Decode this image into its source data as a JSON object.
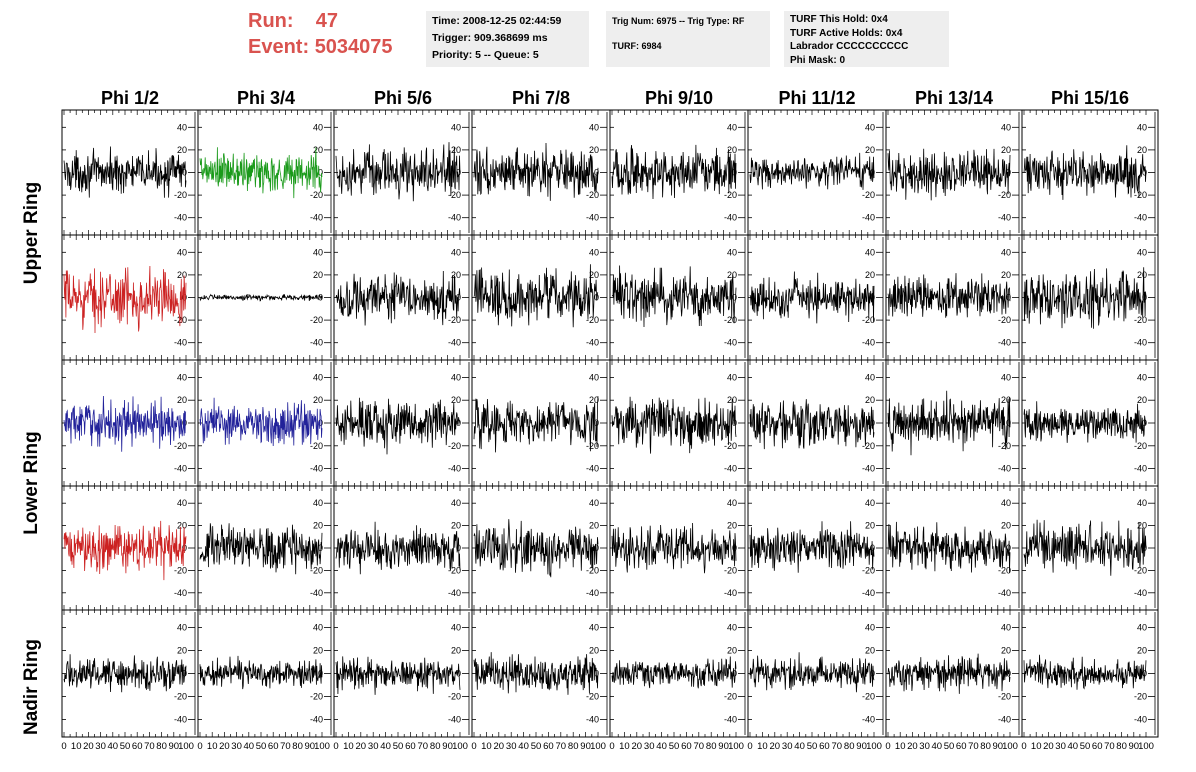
{
  "header": {
    "run_label": "Run:",
    "run_value": "47",
    "event_label": "Event:",
    "event_value": "5034075",
    "time": "Time: 2008-12-25 02:44:59",
    "trigger": "Trigger: 909.368699 ms",
    "priority": "Priority: 5 -- Queue: 5",
    "trig_num": "Trig Num: 6975 -- Trig Type: RF",
    "turf": "TURF: 6984",
    "turf_this_hold": "TURF This Hold: 0x4",
    "turf_active_holds": "TURF Active Holds: 0x4",
    "labrador": "Labrador CCCCCCCCCC",
    "phi_mask": "Phi Mask: 0"
  },
  "columns": [
    "Phi 1/2",
    "Phi 3/4",
    "Phi 5/6",
    "Phi 7/8",
    "Phi 9/10",
    "Phi 11/12",
    "Phi 13/14",
    "Phi 15/16"
  ],
  "rings": [
    "Upper Ring",
    "Lower Ring",
    "Nadir Ring"
  ],
  "colors": {
    "black": "#000000",
    "green": "#1a9a1a",
    "red": "#cc2222",
    "blue": "#22229a"
  },
  "chart_data": {
    "type": "line",
    "ylim": [
      -50,
      50
    ],
    "xlim": [
      0,
      100
    ],
    "yticks": [
      "40",
      "20",
      "0",
      "-20",
      "-40"
    ],
    "xticks": [
      "0",
      "10",
      "20",
      "30",
      "40",
      "50",
      "60",
      "70",
      "80",
      "90",
      "100"
    ],
    "grid": false,
    "rows": [
      {
        "ring": "Upper Ring",
        "panels": [
          {
            "color": "black",
            "amplitude": 20
          },
          {
            "color": "green",
            "amplitude": 22
          },
          {
            "color": "black",
            "amplitude": 24
          },
          {
            "color": "black",
            "amplitude": 24
          },
          {
            "color": "black",
            "amplitude": 24
          },
          {
            "color": "black",
            "amplitude": 16
          },
          {
            "color": "black",
            "amplitude": 22
          },
          {
            "color": "black",
            "amplitude": 24
          }
        ]
      },
      {
        "ring": "Upper Ring",
        "panels": [
          {
            "color": "red",
            "amplitude": 28
          },
          {
            "color": "black",
            "amplitude": 3
          },
          {
            "color": "black",
            "amplitude": 24
          },
          {
            "color": "black",
            "amplitude": 28
          },
          {
            "color": "black",
            "amplitude": 26
          },
          {
            "color": "black",
            "amplitude": 20
          },
          {
            "color": "black",
            "amplitude": 22
          },
          {
            "color": "black",
            "amplitude": 26
          }
        ]
      },
      {
        "ring": "Lower Ring",
        "panels": [
          {
            "color": "blue",
            "amplitude": 22
          },
          {
            "color": "blue",
            "amplitude": 22
          },
          {
            "color": "black",
            "amplitude": 24
          },
          {
            "color": "black",
            "amplitude": 24
          },
          {
            "color": "black",
            "amplitude": 24
          },
          {
            "color": "black",
            "amplitude": 24
          },
          {
            "color": "black",
            "amplitude": 24
          },
          {
            "color": "black",
            "amplitude": 18
          }
        ]
      },
      {
        "ring": "Lower Ring",
        "panels": [
          {
            "color": "red",
            "amplitude": 24
          },
          {
            "color": "black",
            "amplitude": 22
          },
          {
            "color": "black",
            "amplitude": 22
          },
          {
            "color": "black",
            "amplitude": 24
          },
          {
            "color": "black",
            "amplitude": 22
          },
          {
            "color": "black",
            "amplitude": 22
          },
          {
            "color": "black",
            "amplitude": 22
          },
          {
            "color": "black",
            "amplitude": 24
          }
        ]
      },
      {
        "ring": "Nadir Ring",
        "panels": [
          {
            "color": "black",
            "amplitude": 16
          },
          {
            "color": "black",
            "amplitude": 14
          },
          {
            "color": "black",
            "amplitude": 16
          },
          {
            "color": "black",
            "amplitude": 18
          },
          {
            "color": "black",
            "amplitude": 14
          },
          {
            "color": "black",
            "amplitude": 16
          },
          {
            "color": "black",
            "amplitude": 16
          },
          {
            "color": "black",
            "amplitude": 14
          }
        ]
      }
    ]
  }
}
